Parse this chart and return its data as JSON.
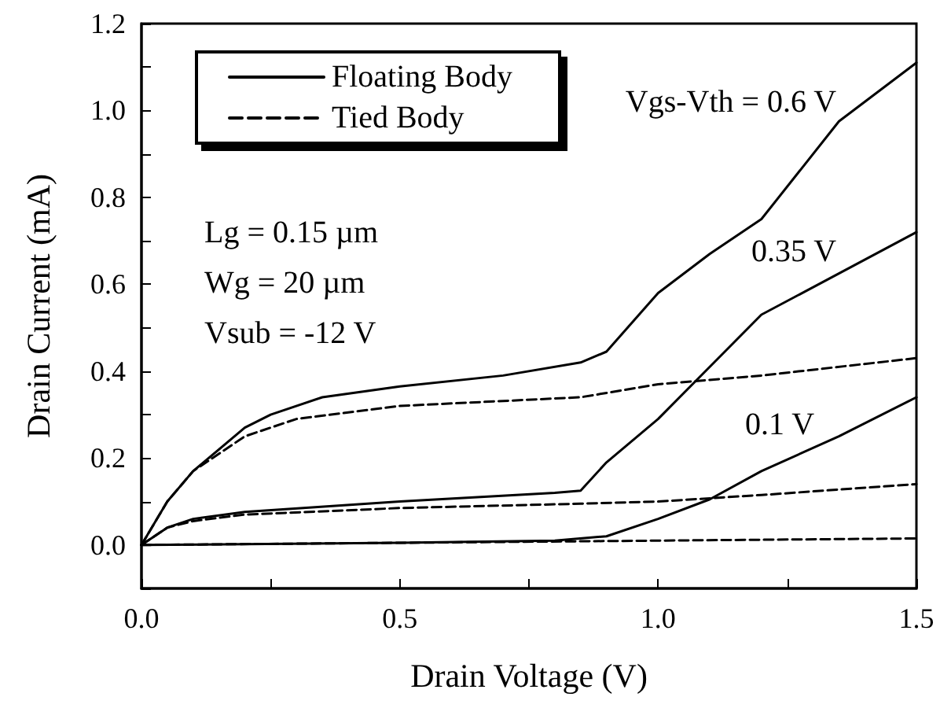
{
  "chart_data": {
    "type": "line",
    "xlabel": "Drain Voltage (V)",
    "ylabel": "Drain Current (mA)",
    "xlim": [
      0,
      1.5
    ],
    "ylim": [
      -0.1,
      1.2
    ],
    "xticks": [
      {
        "value": 0,
        "label": "0.0"
      },
      {
        "value": 0.25,
        "label": null
      },
      {
        "value": 0.5,
        "label": "0.5"
      },
      {
        "value": 0.75,
        "label": null
      },
      {
        "value": 1,
        "label": "1.0"
      },
      {
        "value": 1.25,
        "label": null
      },
      {
        "value": 1.5,
        "label": "1.5"
      }
    ],
    "yticks": [
      {
        "value": -0.1,
        "label": null
      },
      {
        "value": 0,
        "label": "0.0"
      },
      {
        "value": 0.1,
        "label": null
      },
      {
        "value": 0.2,
        "label": "0.2"
      },
      {
        "value": 0.3,
        "label": null
      },
      {
        "value": 0.4,
        "label": "0.4"
      },
      {
        "value": 0.5,
        "label": null
      },
      {
        "value": 0.6,
        "label": "0.6"
      },
      {
        "value": 0.7,
        "label": null
      },
      {
        "value": 0.8,
        "label": "0.8"
      },
      {
        "value": 0.9,
        "label": null
      },
      {
        "value": 1,
        "label": "1.0"
      },
      {
        "value": 1.1,
        "label": null
      },
      {
        "value": 1.2,
        "label": "1.2"
      }
    ],
    "grid": false,
    "legend": "top left",
    "marker": "none",
    "series": [
      {
        "name": "Floating Body",
        "color": "#000000",
        "line_style": "solid",
        "x": [
          0,
          0.05,
          0.1,
          0.2,
          0.25,
          0.35,
          0.5,
          0.7,
          0.85,
          0.9,
          1.0,
          1.1,
          1.2,
          1.35,
          1.5
        ],
        "values": [
          0,
          0.1,
          0.17,
          0.27,
          0.3,
          0.34,
          0.365,
          0.39,
          0.42,
          0.445,
          0.58,
          0.67,
          0.75,
          0.975,
          1.11
        ]
      },
      {
        "color": "#000000",
        "line_style": "solid",
        "x": [
          0,
          0.05,
          0.1,
          0.2,
          0.5,
          0.8,
          0.85,
          0.9,
          1.0,
          1.2,
          1.5
        ],
        "values": [
          0,
          0.04,
          0.06,
          0.076,
          0.1,
          0.12,
          0.125,
          0.19,
          0.29,
          0.53,
          0.72
        ]
      },
      {
        "color": "#000000",
        "line_style": "solid",
        "x": [
          0,
          0.5,
          0.8,
          0.9,
          1.0,
          1.1,
          1.2,
          1.35,
          1.5
        ],
        "values": [
          0,
          0.005,
          0.01,
          0.02,
          0.06,
          0.105,
          0.17,
          0.25,
          0.34
        ]
      },
      {
        "name": "Tied Body",
        "color": "#000000",
        "line_style": "dashed",
        "x": [
          0,
          0.05,
          0.1,
          0.2,
          0.3,
          0.5,
          0.85,
          1.0,
          1.2,
          1.5
        ],
        "values": [
          0,
          0.1,
          0.17,
          0.25,
          0.29,
          0.32,
          0.34,
          0.37,
          0.39,
          0.43
        ]
      },
      {
        "color": "#000000",
        "line_style": "dashed",
        "x": [
          0,
          0.05,
          0.1,
          0.2,
          0.5,
          0.85,
          1.0,
          1.2,
          1.5
        ],
        "values": [
          0,
          0.04,
          0.055,
          0.07,
          0.085,
          0.095,
          0.1,
          0.115,
          0.14
        ]
      },
      {
        "color": "#000000",
        "line_style": "dashed",
        "x": [
          0,
          0.5,
          1.0,
          1.5
        ],
        "values": [
          0,
          0.005,
          0.01,
          0.015
        ]
      }
    ],
    "annotations": [
      "Lg = 0.15 µm",
      "Wg = 20 µm",
      "Vsub = -12 V",
      "Vgs-Vth = 0.6 V",
      "0.35 V",
      "0.1 V"
    ]
  }
}
